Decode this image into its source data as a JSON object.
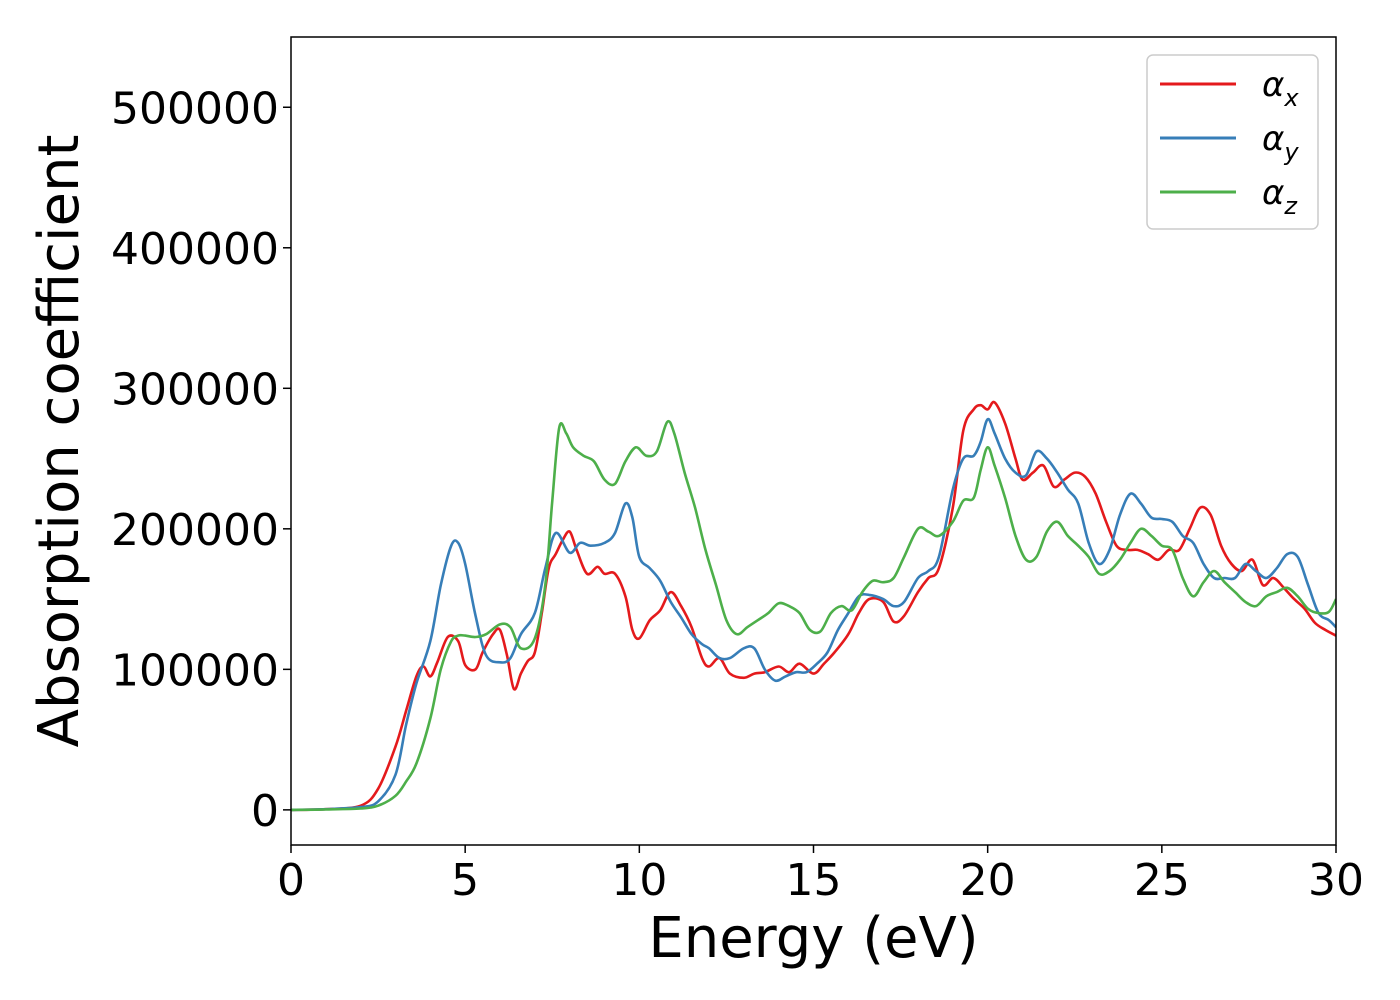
{
  "chart_data": {
    "type": "line",
    "title": "",
    "xlabel": "Energy (eV)",
    "ylabel": "Absorption coefficient",
    "xlim": [
      0,
      30
    ],
    "ylim": [
      -25000,
      550000
    ],
    "xticks": [
      0,
      5,
      10,
      15,
      20,
      25,
      30
    ],
    "xtick_labels": [
      "0",
      "5",
      "10",
      "15",
      "20",
      "25",
      "30"
    ],
    "yticks": [
      0,
      100000,
      200000,
      300000,
      400000,
      500000
    ],
    "ytick_labels": [
      "0",
      "100000",
      "200000",
      "300000",
      "400000",
      "500000"
    ],
    "grid": false,
    "legend_position": "top-right",
    "series": [
      {
        "name": "α_x",
        "legend_base": "α",
        "legend_sub": "x",
        "color": "#e41a1c",
        "x": [
          0,
          1,
          2,
          2.5,
          3,
          3.3,
          3.6,
          3.8,
          4.0,
          4.2,
          4.5,
          4.8,
          5.0,
          5.3,
          5.5,
          5.8,
          6.0,
          6.2,
          6.4,
          6.6,
          6.8,
          7.0,
          7.2,
          7.4,
          7.6,
          7.8,
          8.0,
          8.2,
          8.5,
          8.8,
          9.0,
          9.3,
          9.6,
          9.8,
          10.0,
          10.3,
          10.6,
          10.9,
          11.2,
          11.5,
          11.8,
          12.0,
          12.3,
          12.6,
          13.0,
          13.3,
          13.6,
          14.0,
          14.3,
          14.6,
          15.0,
          15.3,
          15.6,
          16.0,
          16.3,
          16.6,
          17.0,
          17.3,
          17.6,
          18.0,
          18.3,
          18.6,
          19.0,
          19.3,
          19.6,
          19.8,
          20.0,
          20.2,
          20.5,
          20.8,
          21.0,
          21.3,
          21.6,
          21.9,
          22.2,
          22.5,
          22.8,
          23.1,
          23.4,
          23.7,
          24.0,
          24.3,
          24.6,
          24.9,
          25.2,
          25.5,
          25.8,
          26.1,
          26.4,
          26.7,
          27.0,
          27.3,
          27.6,
          27.9,
          28.2,
          28.5,
          28.8,
          29.1,
          29.4,
          29.7,
          30
        ],
        "y": [
          0,
          500,
          3000,
          15000,
          45000,
          70000,
          95000,
          102000,
          95000,
          105000,
          123000,
          120000,
          103000,
          100000,
          112000,
          125000,
          128000,
          110000,
          86000,
          97000,
          106000,
          112000,
          140000,
          172000,
          182000,
          192000,
          198000,
          185000,
          168000,
          173000,
          168000,
          168000,
          152000,
          128000,
          122000,
          135000,
          142000,
          155000,
          145000,
          130000,
          108000,
          102000,
          108000,
          97000,
          94000,
          97000,
          98000,
          102000,
          98000,
          104000,
          97000,
          104000,
          112000,
          125000,
          140000,
          150000,
          148000,
          134000,
          138000,
          155000,
          165000,
          172000,
          215000,
          270000,
          285000,
          288000,
          285000,
          290000,
          275000,
          250000,
          235000,
          240000,
          245000,
          230000,
          235000,
          240000,
          237000,
          225000,
          205000,
          188000,
          185000,
          185000,
          182000,
          178000,
          185000,
          185000,
          200000,
          215000,
          210000,
          188000,
          175000,
          170000,
          178000,
          160000,
          165000,
          158000,
          150000,
          143000,
          133000,
          128000,
          124000
        ]
      },
      {
        "name": "α_y",
        "legend_base": "α",
        "legend_sub": "y",
        "color": "#377eb8",
        "x": [
          0,
          1,
          2,
          2.5,
          3,
          3.3,
          3.6,
          4.0,
          4.3,
          4.6,
          4.8,
          5.0,
          5.3,
          5.6,
          6.0,
          6.3,
          6.6,
          7.0,
          7.3,
          7.6,
          8.0,
          8.3,
          8.6,
          9.0,
          9.3,
          9.6,
          9.8,
          10.0,
          10.3,
          10.6,
          10.9,
          11.2,
          11.5,
          11.8,
          12.0,
          12.3,
          12.6,
          13.0,
          13.3,
          13.6,
          13.9,
          14.2,
          14.5,
          14.8,
          15.1,
          15.4,
          15.7,
          16.0,
          16.3,
          16.6,
          17.0,
          17.3,
          17.6,
          18.0,
          18.3,
          18.6,
          19.0,
          19.3,
          19.6,
          19.8,
          20.0,
          20.2,
          20.5,
          20.8,
          21.1,
          21.4,
          21.7,
          22.0,
          22.3,
          22.6,
          22.9,
          23.2,
          23.5,
          23.8,
          24.1,
          24.4,
          24.7,
          25.0,
          25.3,
          25.6,
          25.9,
          26.2,
          26.5,
          26.8,
          27.1,
          27.4,
          27.7,
          28.0,
          28.3,
          28.6,
          28.9,
          29.2,
          29.5,
          29.8,
          30
        ],
        "y": [
          0,
          500,
          2000,
          6000,
          25000,
          60000,
          90000,
          120000,
          160000,
          188000,
          190000,
          175000,
          138000,
          110000,
          105000,
          108000,
          125000,
          140000,
          172000,
          197000,
          183000,
          190000,
          188000,
          190000,
          197000,
          218000,
          208000,
          180000,
          172000,
          163000,
          148000,
          137000,
          125000,
          118000,
          115000,
          108000,
          108000,
          115000,
          115000,
          100000,
          92000,
          95000,
          98000,
          98000,
          104000,
          112000,
          128000,
          140000,
          152000,
          153000,
          150000,
          145000,
          148000,
          165000,
          170000,
          180000,
          228000,
          250000,
          252000,
          262000,
          278000,
          268000,
          250000,
          240000,
          238000,
          255000,
          250000,
          240000,
          228000,
          218000,
          190000,
          175000,
          185000,
          210000,
          225000,
          218000,
          208000,
          207000,
          205000,
          195000,
          190000,
          175000,
          165000,
          165000,
          165000,
          175000,
          170000,
          165000,
          172000,
          182000,
          180000,
          160000,
          140000,
          135000,
          130000
        ]
      },
      {
        "name": "α_z",
        "legend_base": "α",
        "legend_sub": "z",
        "color": "#4daf4a",
        "x": [
          0,
          1,
          2,
          2.5,
          3,
          3.3,
          3.6,
          4.0,
          4.3,
          4.6,
          4.8,
          5.0,
          5.3,
          5.6,
          6.0,
          6.3,
          6.6,
          7.0,
          7.3,
          7.5,
          7.7,
          7.9,
          8.1,
          8.4,
          8.7,
          9.0,
          9.3,
          9.6,
          9.9,
          10.2,
          10.5,
          10.8,
          11.0,
          11.3,
          11.6,
          11.9,
          12.2,
          12.5,
          12.8,
          13.1,
          13.4,
          13.7,
          14.0,
          14.3,
          14.6,
          14.9,
          15.2,
          15.5,
          15.8,
          16.1,
          16.4,
          16.7,
          17.0,
          17.3,
          17.6,
          18.0,
          18.3,
          18.6,
          19.0,
          19.3,
          19.6,
          19.8,
          20.0,
          20.2,
          20.5,
          20.8,
          21.1,
          21.4,
          21.7,
          22.0,
          22.3,
          22.6,
          22.9,
          23.2,
          23.5,
          23.8,
          24.1,
          24.4,
          24.7,
          25.0,
          25.3,
          25.6,
          25.9,
          26.2,
          26.5,
          26.8,
          27.1,
          27.4,
          27.7,
          28.0,
          28.3,
          28.6,
          28.9,
          29.2,
          29.5,
          29.8,
          30
        ],
        "y": [
          0,
          300,
          1000,
          3000,
          10000,
          20000,
          33000,
          65000,
          100000,
          120000,
          124000,
          124000,
          123000,
          125000,
          132000,
          130000,
          115000,
          122000,
          160000,
          220000,
          272000,
          268000,
          258000,
          252000,
          248000,
          235000,
          232000,
          248000,
          258000,
          252000,
          255000,
          276000,
          268000,
          240000,
          215000,
          185000,
          160000,
          135000,
          125000,
          130000,
          135000,
          140000,
          147000,
          145000,
          140000,
          128000,
          127000,
          140000,
          145000,
          142000,
          155000,
          163000,
          162000,
          165000,
          180000,
          200000,
          198000,
          195000,
          205000,
          220000,
          222000,
          242000,
          258000,
          245000,
          222000,
          195000,
          178000,
          180000,
          198000,
          205000,
          195000,
          188000,
          180000,
          168000,
          170000,
          178000,
          190000,
          200000,
          195000,
          188000,
          185000,
          165000,
          152000,
          162000,
          170000,
          162000,
          155000,
          148000,
          145000,
          152000,
          155000,
          158000,
          152000,
          143000,
          140000,
          141000,
          150000
        ]
      }
    ]
  }
}
